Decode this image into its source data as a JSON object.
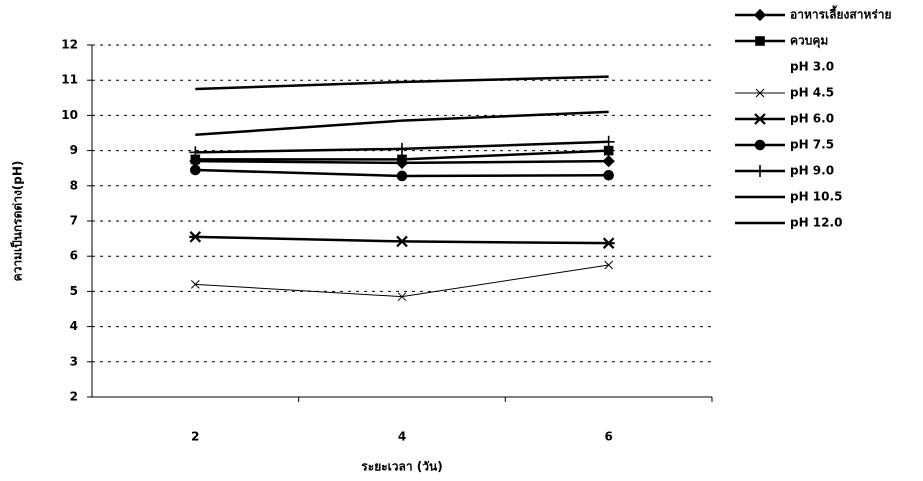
{
  "chart_data": {
    "type": "line",
    "x_label": "ระยะเวลา (วัน)",
    "y_label": "ความเป็นกรดด่าง(pH)",
    "categories": [
      "2",
      "4",
      "6"
    ],
    "ylim": [
      2,
      12
    ],
    "yticks": [
      2,
      3,
      4,
      5,
      6,
      7,
      8,
      9,
      10,
      11,
      12
    ],
    "grid": true,
    "legend": "right",
    "series": [
      {
        "name": "อาหารเลี้ยงสาหร่าย",
        "color": "#000000",
        "marker": "diamond",
        "line_width": 2.5,
        "values": [
          8.7,
          8.65,
          8.7
        ]
      },
      {
        "name": "ควบคุม",
        "color": "#000000",
        "marker": "square",
        "line_width": 2.5,
        "values": [
          8.75,
          8.75,
          9.0
        ]
      },
      {
        "name": "pH 3.0",
        "color": "#ffffff",
        "marker": "none",
        "line_width": 2.5,
        "values": [
          null,
          null,
          null
        ]
      },
      {
        "name": "pH 4.5",
        "color": "#000000",
        "marker": "x",
        "line_width": 1,
        "values": [
          5.2,
          4.85,
          5.75
        ]
      },
      {
        "name": "pH 6.0",
        "color": "#000000",
        "marker": "asterisk",
        "line_width": 2.5,
        "values": [
          6.55,
          6.42,
          6.37
        ]
      },
      {
        "name": "pH 7.5",
        "color": "#000000",
        "marker": "circle",
        "line_width": 2.5,
        "values": [
          8.45,
          8.28,
          8.3
        ]
      },
      {
        "name": "pH 9.0",
        "color": "#000000",
        "marker": "plus",
        "line_width": 2.5,
        "values": [
          8.95,
          9.05,
          9.25
        ]
      },
      {
        "name": "pH 10.5",
        "color": "#000000",
        "marker": "none",
        "line_width": 2.5,
        "values": [
          9.45,
          9.85,
          10.1
        ]
      },
      {
        "name": "pH 12.0",
        "color": "#000000",
        "marker": "none",
        "line_width": 2.5,
        "values": [
          10.75,
          10.95,
          11.1
        ]
      }
    ]
  }
}
